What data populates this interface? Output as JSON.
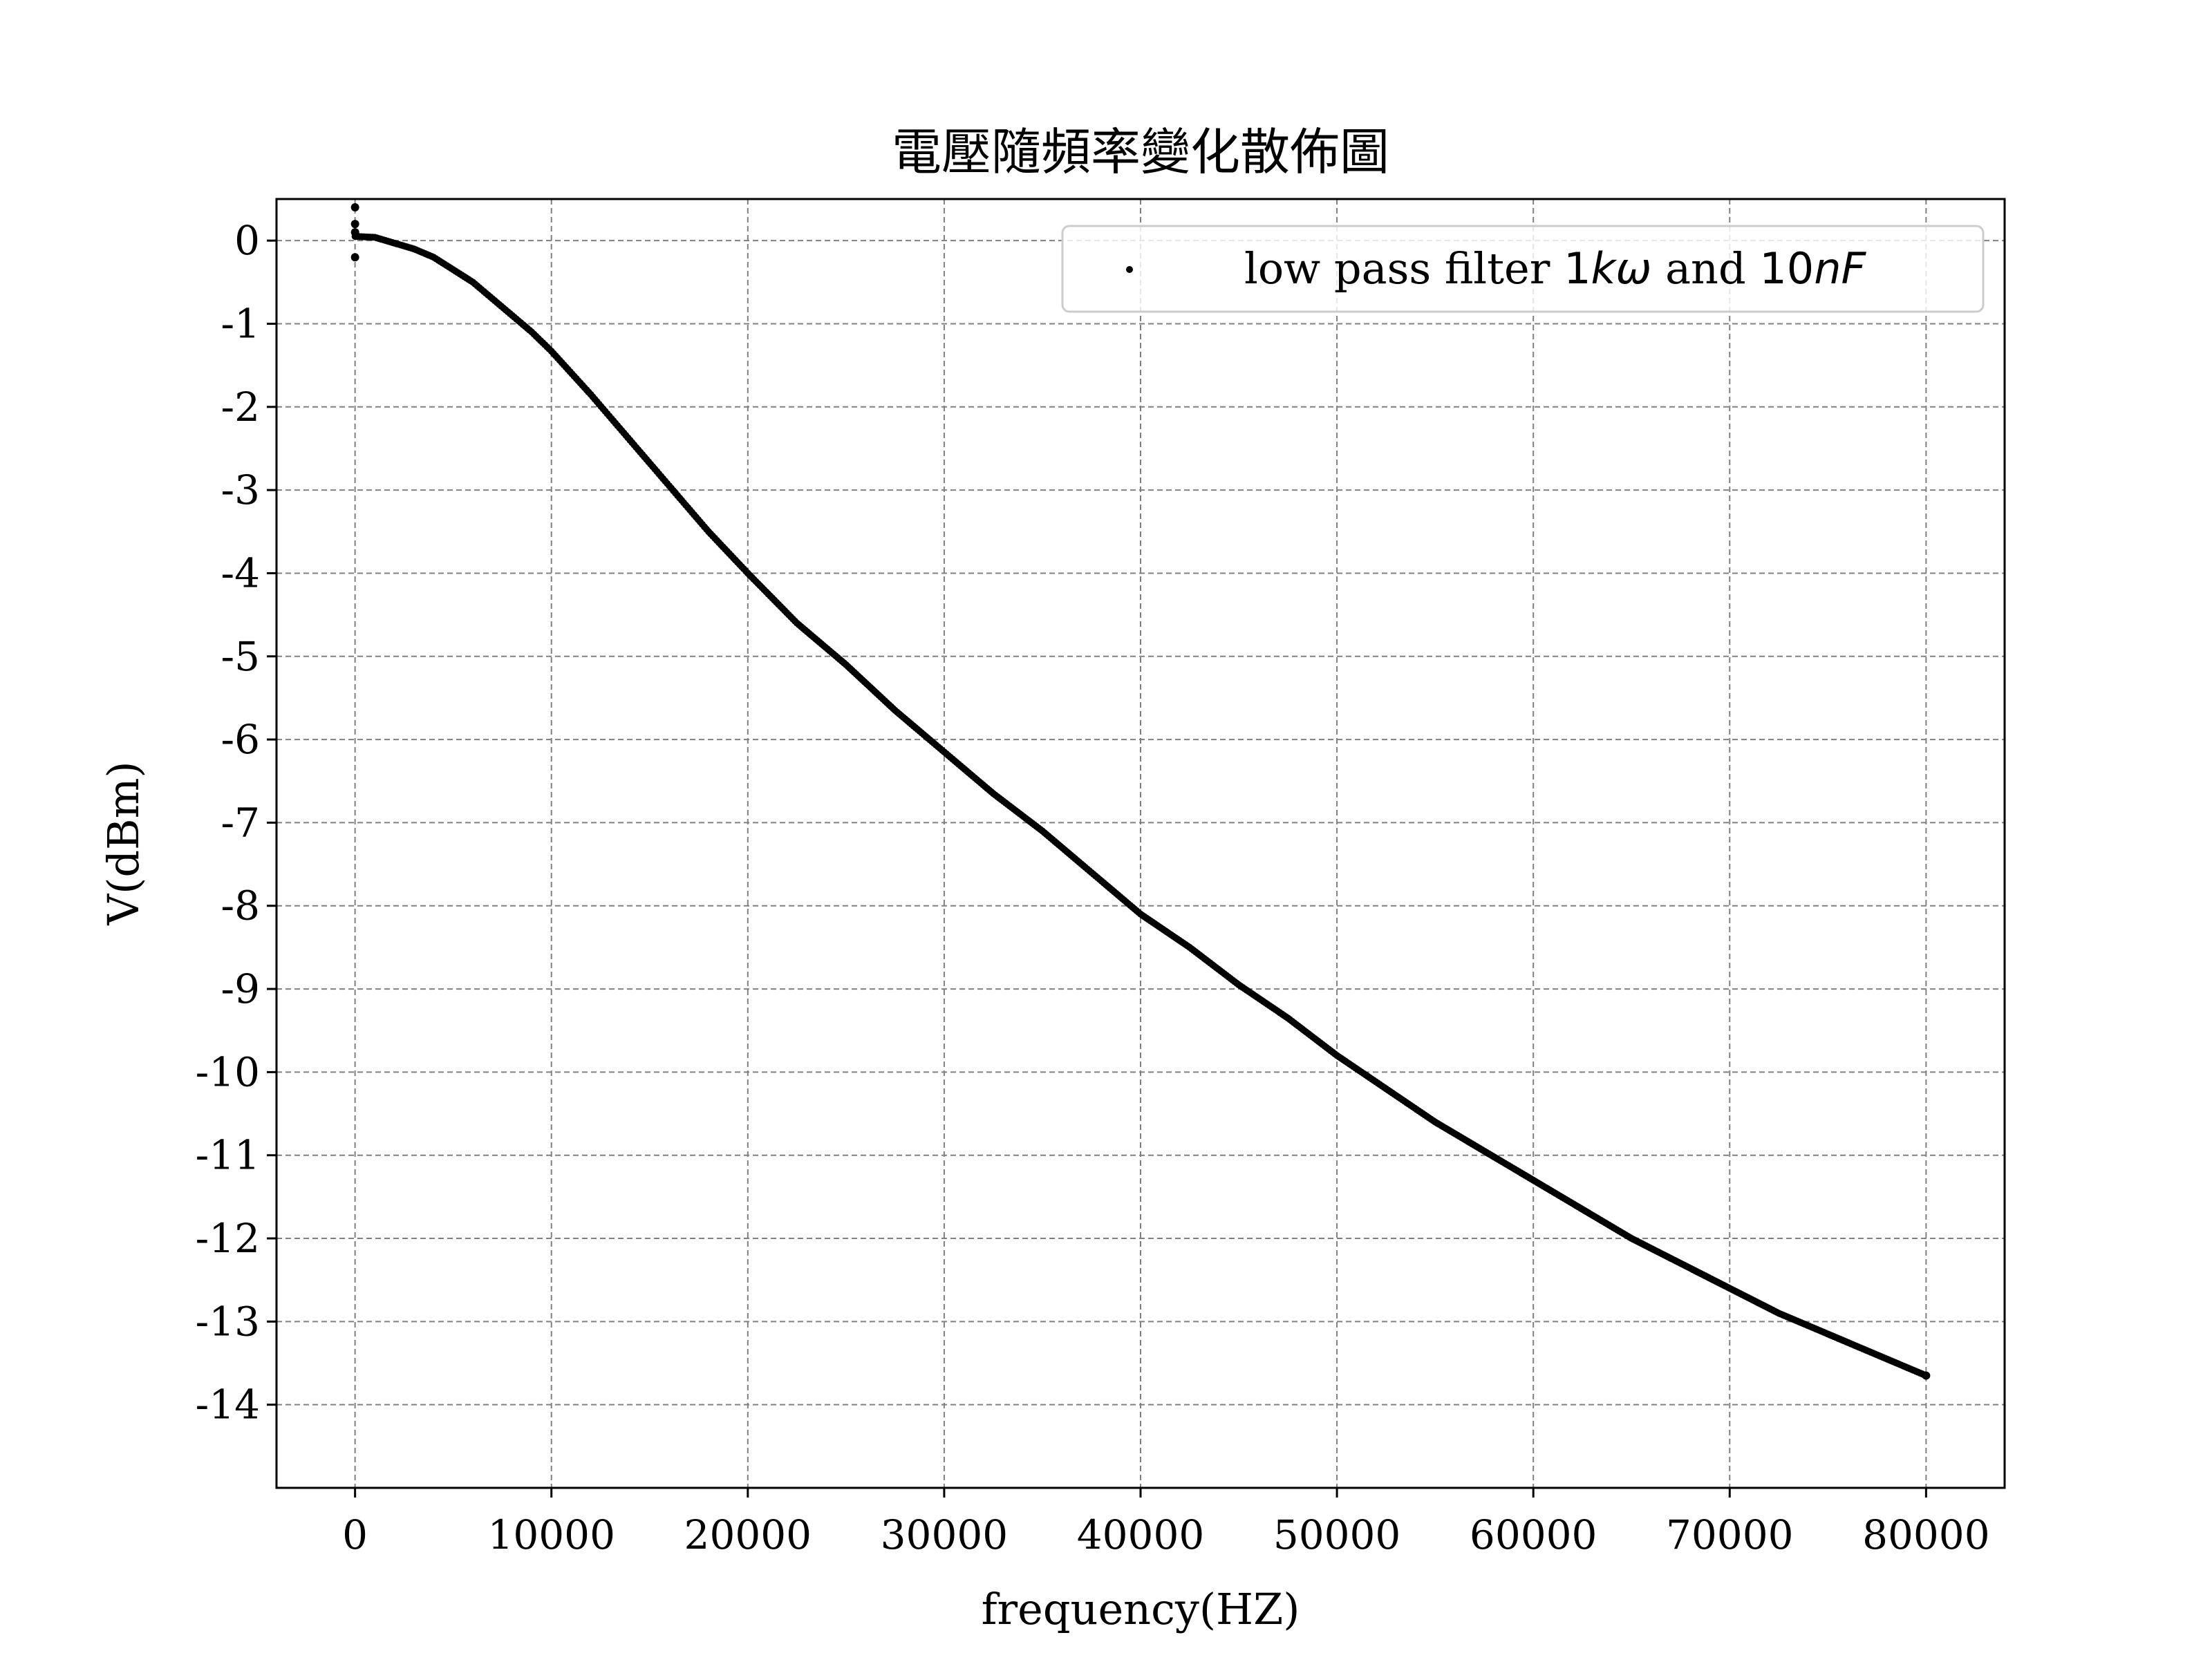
{
  "chart_data": {
    "type": "scatter",
    "title": "電壓隨頻率變化散佈圖",
    "xlabel": "frequency(HZ)",
    "ylabel": "V(dBm)",
    "xlim": [
      -4000,
      84000
    ],
    "ylim": [
      -15,
      0.5
    ],
    "xticks": [
      0,
      10000,
      20000,
      30000,
      40000,
      50000,
      60000,
      70000,
      80000
    ],
    "xtick_labels": [
      "0",
      "10000",
      "20000",
      "30000",
      "40000",
      "50000",
      "60000",
      "70000",
      "80000"
    ],
    "yticks": [
      0,
      -1,
      -2,
      -3,
      -4,
      -5,
      -6,
      -7,
      -8,
      -9,
      -10,
      -11,
      -12,
      -13,
      -14
    ],
    "ytick_labels": [
      "0",
      "-1",
      "-2",
      "-3",
      "-4",
      "-5",
      "-6",
      "-7",
      "-8",
      "-9",
      "-10",
      "-11",
      "-12",
      "-13",
      "-14"
    ],
    "grid": true,
    "legend_placement": "top-right",
    "legend": {
      "prefix": "low pass filter ",
      "math1_num": "1",
      "math1_var": "kω",
      "middle": " and ",
      "math2_num": "10",
      "math2_var": "nF"
    },
    "series": [
      {
        "name": "low pass filter 1kω and 10nF",
        "color": "#000000",
        "marker": "dot",
        "extra_points": [
          {
            "x": 0,
            "y": 0.4
          },
          {
            "x": 0,
            "y": 0.2
          },
          {
            "x": 0,
            "y": 0.1
          },
          {
            "x": 0,
            "y": -0.2
          }
        ],
        "points": [
          {
            "x": 0,
            "y": 0.05
          },
          {
            "x": 1000,
            "y": 0.04
          },
          {
            "x": 2000,
            "y": -0.03
          },
          {
            "x": 3000,
            "y": -0.1
          },
          {
            "x": 4000,
            "y": -0.2
          },
          {
            "x": 5000,
            "y": -0.35
          },
          {
            "x": 6000,
            "y": -0.5
          },
          {
            "x": 7000,
            "y": -0.7
          },
          {
            "x": 8000,
            "y": -0.9
          },
          {
            "x": 9000,
            "y": -1.1
          },
          {
            "x": 10000,
            "y": -1.33
          },
          {
            "x": 12000,
            "y": -1.85
          },
          {
            "x": 14000,
            "y": -2.4
          },
          {
            "x": 16000,
            "y": -2.95
          },
          {
            "x": 18000,
            "y": -3.5
          },
          {
            "x": 20000,
            "y": -4.0
          },
          {
            "x": 22500,
            "y": -4.6
          },
          {
            "x": 25000,
            "y": -5.1
          },
          {
            "x": 27500,
            "y": -5.65
          },
          {
            "x": 30000,
            "y": -6.15
          },
          {
            "x": 32500,
            "y": -6.65
          },
          {
            "x": 35000,
            "y": -7.1
          },
          {
            "x": 37500,
            "y": -7.6
          },
          {
            "x": 40000,
            "y": -8.1
          },
          {
            "x": 42500,
            "y": -8.5
          },
          {
            "x": 45000,
            "y": -8.95
          },
          {
            "x": 47500,
            "y": -9.35
          },
          {
            "x": 50000,
            "y": -9.8
          },
          {
            "x": 52500,
            "y": -10.2
          },
          {
            "x": 55000,
            "y": -10.6
          },
          {
            "x": 57500,
            "y": -10.95
          },
          {
            "x": 60000,
            "y": -11.3
          },
          {
            "x": 62500,
            "y": -11.65
          },
          {
            "x": 65000,
            "y": -12.0
          },
          {
            "x": 67500,
            "y": -12.3
          },
          {
            "x": 70000,
            "y": -12.6
          },
          {
            "x": 72500,
            "y": -12.9
          },
          {
            "x": 75000,
            "y": -13.15
          },
          {
            "x": 77500,
            "y": -13.4
          },
          {
            "x": 80000,
            "y": -13.65
          }
        ]
      }
    ]
  }
}
